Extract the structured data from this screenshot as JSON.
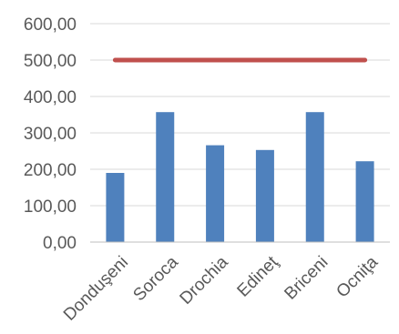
{
  "chart_data": {
    "type": "bar",
    "categories": [
      "Donduşeni",
      "Soroca",
      "Drochia",
      "Edineţ",
      "Briceni",
      "Ocniţa"
    ],
    "series": [
      {
        "values": [
          190,
          357,
          266,
          253,
          357,
          222
        ],
        "color": "#4F81BD",
        "kind": "bar"
      },
      {
        "values": [
          500,
          500,
          500,
          500,
          500,
          500
        ],
        "color": "#C0504D",
        "kind": "line"
      }
    ],
    "y_ticks": [
      "0,00",
      "100,00",
      "200,00",
      "300,00",
      "400,00",
      "500,00",
      "600,00"
    ],
    "ylim": [
      0,
      600
    ],
    "grid": true,
    "legend": "none",
    "title": "",
    "xlabel": "",
    "ylabel": ""
  }
}
